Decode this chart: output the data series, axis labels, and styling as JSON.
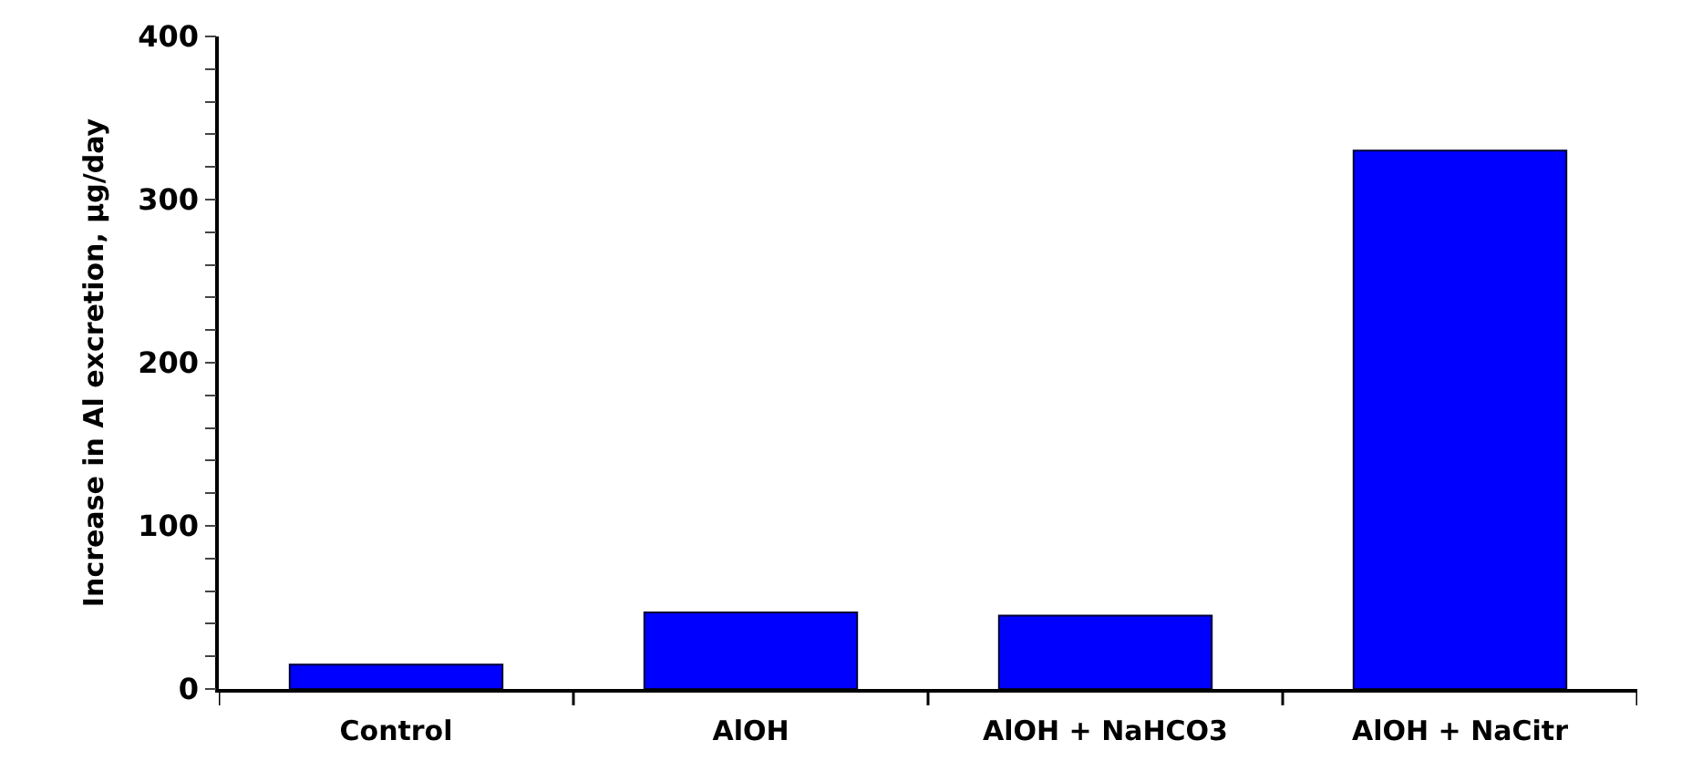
{
  "chart_data": {
    "type": "bar",
    "ylabel": "Increase in Al excretion, µg/day",
    "categories": [
      "Control",
      "AlOH",
      "AlOH + NaHCO3",
      "AlOH + NaCitr"
    ],
    "values": [
      15,
      47,
      45,
      330
    ],
    "color": "#0000ff",
    "ylim": [
      0,
      400
    ],
    "yticks": [
      0,
      {
        "value": 20,
        "label": null
      },
      {
        "value": 40,
        "label": null
      },
      {
        "value": 60,
        "label": null
      },
      {
        "value": 80,
        "label": null
      },
      100,
      {
        "value": 120,
        "label": null
      },
      {
        "value": 140,
        "label": null
      },
      {
        "value": 160,
        "label": null
      },
      {
        "value": 180,
        "label": null
      },
      200,
      {
        "value": 220,
        "label": null
      },
      {
        "value": 240,
        "label": null
      },
      {
        "value": 260,
        "label": null
      },
      {
        "value": 280,
        "label": null
      },
      300,
      {
        "value": 320,
        "label": null
      },
      {
        "value": 340,
        "label": null
      },
      {
        "value": 360,
        "label": null
      },
      {
        "value": 380,
        "label": null
      },
      400
    ],
    "legend": false
  }
}
